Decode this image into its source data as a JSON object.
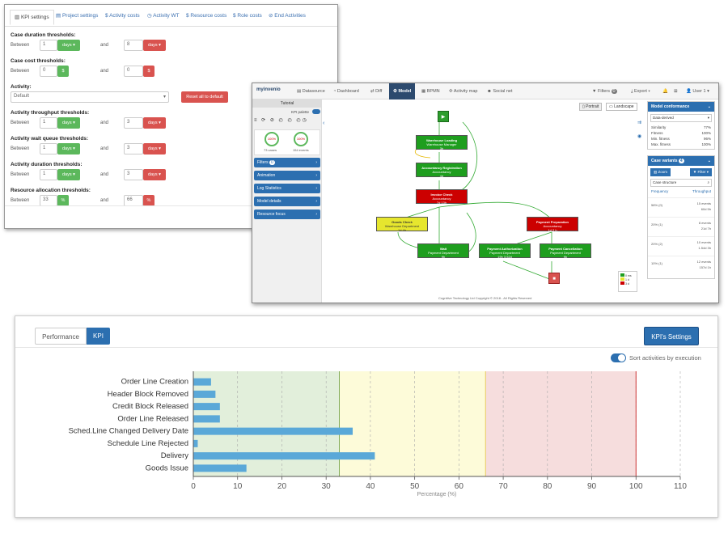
{
  "kpi_settings": {
    "tabs": [
      "KPI settings",
      "Project settings",
      "Activity costs",
      "Activity WT",
      "Resource costs",
      "Role costs",
      "End Activities"
    ],
    "case_duration": {
      "title": "Case duration thresholds:",
      "between": "Between",
      "v1": "1",
      "unit1": "days ▾",
      "and": "and",
      "v2": "8",
      "unit2": "days ▾"
    },
    "case_cost": {
      "title": "Case cost thresholds:",
      "between": "Between",
      "v1": "0",
      "unit1": "$",
      "and": "and",
      "v2": "0",
      "unit2": "$"
    },
    "activity": {
      "title": "Activity:",
      "value": "Default",
      "reset": "Reset all to default"
    },
    "throughput": {
      "title": "Activity throughput thresholds:",
      "between": "Between",
      "v1": "1",
      "unit1": "days ▾",
      "and": "and",
      "v2": "3",
      "unit2": "days ▾"
    },
    "wait_queue": {
      "title": "Activity wait queue thresholds:",
      "between": "Between",
      "v1": "1",
      "unit1": "days ▾",
      "and": "and",
      "v2": "3",
      "unit2": "days ▾"
    },
    "duration": {
      "title": "Activity duration thresholds:",
      "between": "Between",
      "v1": "1",
      "unit1": "days ▾",
      "and": "and",
      "v2": "3",
      "unit2": "days ▾"
    },
    "resource": {
      "title": "Resource allocation thresholds:",
      "between": "Between",
      "v1": "33",
      "unit1": "%",
      "and": "and",
      "v2": "66",
      "unit2": "%"
    }
  },
  "mining": {
    "logo": "myinvenio",
    "nav": [
      "Datasource",
      "Dashboard",
      "Diff",
      "Model",
      "BPMN",
      "Activity map",
      "Social net"
    ],
    "nav_right": [
      "Filters",
      "Export ▾",
      "User 1 ▾"
    ],
    "filters_count": "0",
    "tutorial": "Tutorial",
    "kpi_palette": "KPI palette",
    "cases": "100%",
    "cases_label": "73 cases",
    "events": "100%",
    "events_label": "154 events",
    "accordion": [
      "Filters",
      "Animation",
      "Log Statistics",
      "Model details",
      "Resource focus"
    ],
    "filters_badge": "0",
    "portrait": "Portrait",
    "landscape": "Landscape",
    "nodes": [
      {
        "name": "Warehouse Loading",
        "sub": "Warehouse Manager",
        "time": "3h"
      },
      {
        "name": "Accountancy Registration",
        "sub": "Accountancy",
        "time": "4d"
      },
      {
        "name": "Invoice Check",
        "sub": "Accountancy",
        "time": "7d 13h"
      },
      {
        "name": "Goods Check",
        "sub": "Warehouse Department",
        "time": "1d 4h"
      },
      {
        "name": "Wait",
        "sub": "Payment Department",
        "time": "9h"
      },
      {
        "name": "Payment Preparation",
        "sub": "Accountancy",
        "time": "1d 2 h"
      },
      {
        "name": "Payment Authorization",
        "sub": "Payment Department",
        "time": "19h 3.52d"
      },
      {
        "name": "Payment Cancellation",
        "sub": "Payment Department",
        "time": "9h"
      }
    ],
    "legend": [
      "0 ms",
      "1 d",
      "3 d"
    ],
    "footer": "Cognitive Technology Ltd Copyright © 2018 - All Rights Reserved",
    "conformance": {
      "title": "Model conformance",
      "select": "Data-derived",
      "rows": [
        [
          "Similarity",
          "77%"
        ],
        [
          "Fitness",
          "100%"
        ],
        [
          "Min. fitness",
          "96%"
        ],
        [
          "Max. fitness",
          "100%"
        ]
      ]
    },
    "variants": {
      "title": "Case variants",
      "count": "4",
      "zoom": "Zoom",
      "filter": "Filter",
      "select": "Case structure",
      "freq": "Frequency",
      "thr": "Throughput",
      "rows": [
        [
          "58% (0)",
          "15 events",
          "60d 5h"
        ],
        [
          "20% (1)",
          "8 events",
          "21d 7h"
        ],
        [
          "20% (2)",
          "10 events",
          "1.54d 3h"
        ],
        [
          "10% (1)",
          "12 events",
          "157d 1h"
        ]
      ]
    }
  },
  "kpi_chart": {
    "tabs": [
      "Performance",
      "KPI"
    ],
    "settings_button": "KPI's Settings",
    "toggle_label": "Sort activities by execution",
    "colors": {
      "good": "#e2efdb",
      "warn": "#fdfbd9",
      "bad": "#f6dddd",
      "bar": "#5aa8d8",
      "accent": "#2c6fb0"
    }
  },
  "chart_data": {
    "type": "bar",
    "orientation": "horizontal",
    "categories": [
      "Order Line Creation",
      "Header Block Removed",
      "Credit Block Released",
      "Order Line Released",
      "Sched.Line Changed Delivery Date",
      "Schedule Line Rejected",
      "Delivery",
      "Goods Issue"
    ],
    "values": [
      4,
      5,
      6,
      6,
      36,
      1,
      41,
      12
    ],
    "xlabel": "Percentage (%)",
    "xlim": [
      0,
      110
    ],
    "xticks": [
      0,
      10,
      20,
      30,
      40,
      50,
      60,
      70,
      80,
      90,
      100,
      110
    ],
    "thresholds": [
      33,
      66,
      100
    ],
    "grid": true
  }
}
